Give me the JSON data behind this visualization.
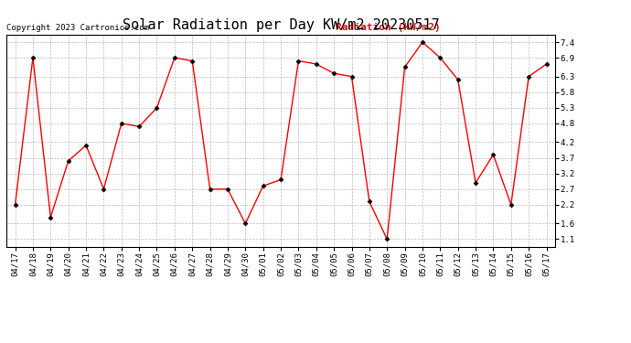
{
  "title": "Solar Radiation per Day KW/m2 20230517",
  "copyright": "Copyright 2023 Cartronics.com",
  "legend_label": "Radiation (kW/m2)",
  "dates": [
    "04/17",
    "04/18",
    "04/19",
    "04/20",
    "04/21",
    "04/22",
    "04/23",
    "04/24",
    "04/25",
    "04/26",
    "04/27",
    "04/28",
    "04/29",
    "04/30",
    "05/01",
    "05/02",
    "05/03",
    "05/04",
    "05/05",
    "05/06",
    "05/07",
    "05/08",
    "05/09",
    "05/10",
    "05/11",
    "05/12",
    "05/13",
    "05/14",
    "05/15",
    "05/16",
    "05/17"
  ],
  "values": [
    2.2,
    6.9,
    1.8,
    3.6,
    4.1,
    2.7,
    4.8,
    4.7,
    5.3,
    6.9,
    6.8,
    2.7,
    2.7,
    1.6,
    2.8,
    3.0,
    6.8,
    6.7,
    6.4,
    6.3,
    2.3,
    1.1,
    6.6,
    7.4,
    6.9,
    6.2,
    2.9,
    3.8,
    2.2,
    6.3,
    6.7
  ],
  "yticks": [
    1.1,
    1.6,
    2.2,
    2.7,
    3.2,
    3.7,
    4.2,
    4.8,
    5.3,
    5.8,
    6.3,
    6.9,
    7.4
  ],
  "ymin": 0.85,
  "ymax": 7.65,
  "line_color": "red",
  "marker_color": "black",
  "marker": "D",
  "marker_size": 2.5,
  "title_fontsize": 11,
  "copyright_fontsize": 6.5,
  "legend_fontsize": 8,
  "tick_fontsize": 6.5,
  "background_color": "#ffffff",
  "grid_color": "#bbbbbb",
  "grid_style": "dashed"
}
